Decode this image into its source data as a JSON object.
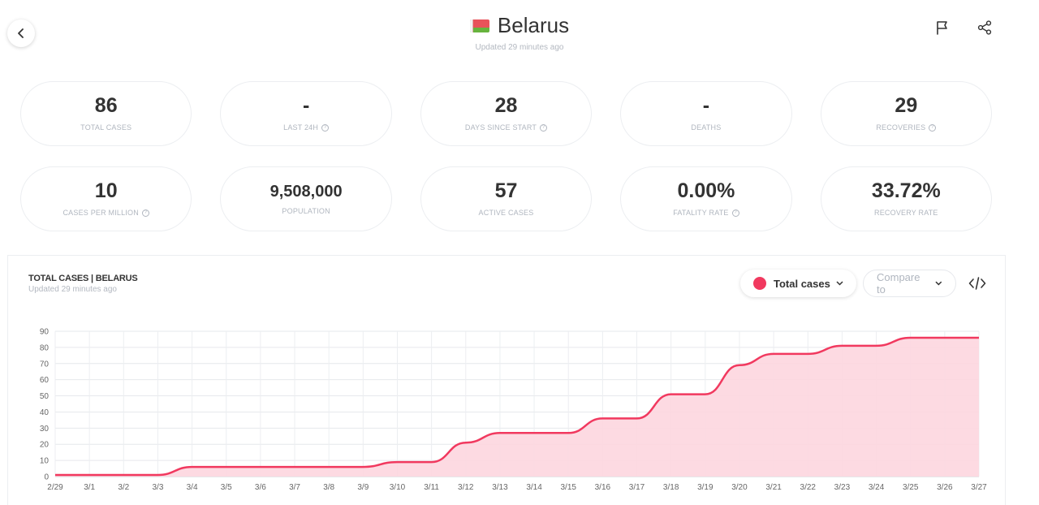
{
  "header": {
    "country": "Belarus",
    "updated": "Updated 29 minutes ago"
  },
  "stats_row1": [
    {
      "value": "86",
      "label": "TOTAL CASES",
      "help": false
    },
    {
      "value": "-",
      "label": "LAST 24H",
      "help": true
    },
    {
      "value": "28",
      "label": "DAYS SINCE START",
      "help": true
    },
    {
      "value": "-",
      "label": "DEATHS",
      "help": false
    },
    {
      "value": "29",
      "label": "RECOVERIES",
      "help": true
    }
  ],
  "stats_row2": [
    {
      "value": "10",
      "label": "CASES PER MILLION",
      "help": true
    },
    {
      "value": "9,508,000",
      "label": "POPULATION",
      "help": false
    },
    {
      "value": "57",
      "label": "ACTIVE CASES",
      "help": false
    },
    {
      "value": "0.00%",
      "label": "FATALITY RATE",
      "help": true
    },
    {
      "value": "33.72%",
      "label": "RECOVERY RATE",
      "help": false
    }
  ],
  "chart_panel": {
    "title": "TOTAL CASES | BELARUS",
    "updated": "Updated 29 minutes ago",
    "series_selector": "Total cases",
    "compare_placeholder": "Compare to"
  },
  "colors": {
    "series": "#f1395f",
    "fill": "#fdd6df",
    "flag_red": "#e8525a",
    "flag_green": "#67b33d"
  },
  "chart_data": {
    "type": "area",
    "x": [
      "2/29",
      "3/1",
      "3/2",
      "3/3",
      "3/4",
      "3/5",
      "3/6",
      "3/7",
      "3/8",
      "3/9",
      "3/10",
      "3/11",
      "3/12",
      "3/13",
      "3/14",
      "3/15",
      "3/16",
      "3/17",
      "3/18",
      "3/19",
      "3/20",
      "3/21",
      "3/22",
      "3/23",
      "3/24",
      "3/25",
      "3/26",
      "3/27"
    ],
    "series": [
      {
        "name": "Total cases",
        "values": [
          1,
          1,
          1,
          1,
          6,
          6,
          6,
          6,
          6,
          6,
          9,
          9,
          21,
          27,
          27,
          27,
          36,
          36,
          51,
          51,
          69,
          76,
          76,
          81,
          81,
          86,
          86,
          86
        ]
      }
    ],
    "yticks": [
      0,
      10,
      20,
      30,
      40,
      50,
      60,
      70,
      80,
      90
    ],
    "ylim": [
      0,
      90
    ],
    "grid": true
  }
}
